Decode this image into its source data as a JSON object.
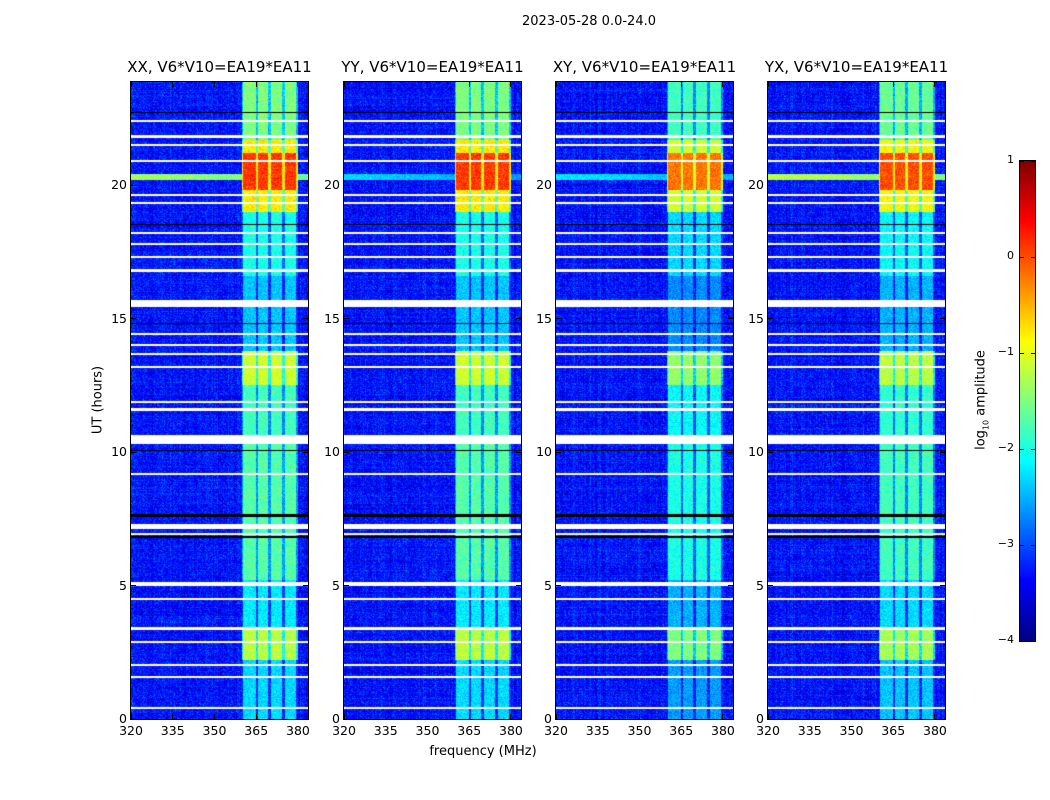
{
  "suptitle": "2023-05-28 0.0-24.0",
  "chart_data": {
    "type": "heatmap",
    "title": "2023-05-28 0.0-24.0",
    "xlabel": "frequency (MHz)",
    "ylabel": "UT (hours)",
    "xlim": [
      320,
      383.6
    ],
    "ylim": [
      0,
      23.86
    ],
    "xticks": [
      "320",
      "335",
      "350",
      "365",
      "380"
    ],
    "xtick_values": [
      320,
      335,
      350,
      365,
      380
    ],
    "yticks": [
      "0",
      "5",
      "10",
      "15",
      "20"
    ],
    "ytick_values": [
      0,
      5,
      10,
      15,
      20
    ],
    "colorbar": {
      "label_main": "log",
      "label_sub": "10",
      "label_rest": " amplitude",
      "colormap": "jet",
      "range": [
        -4,
        1
      ],
      "ticks": [
        "1",
        "0",
        "−1",
        "−2",
        "−3",
        "−4"
      ],
      "tick_values": [
        1,
        0,
        -1,
        -2,
        -3,
        -4
      ]
    },
    "background_level": -3.3,
    "rfi_band_channels_mhz": [
      [
        360.2,
        364.9
      ],
      [
        365.6,
        369.2
      ],
      [
        370.3,
        374.2
      ],
      [
        375.3,
        379.2
      ]
    ],
    "rfi_band_levels": [
      {
        "hours": [
          0,
          2.2
        ],
        "level": -2.3
      },
      {
        "hours": [
          2.2,
          3.4
        ],
        "level": -1.2
      },
      {
        "hours": [
          3.4,
          5.2
        ],
        "level": -2.2
      },
      {
        "hours": [
          5.2,
          10.4
        ],
        "level": -1.7
      },
      {
        "hours": [
          10.4,
          12.5
        ],
        "level": -1.8
      },
      {
        "hours": [
          12.5,
          13.8
        ],
        "level": -1.1
      },
      {
        "hours": [
          13.8,
          16.6
        ],
        "level": -2.4
      },
      {
        "hours": [
          16.6,
          19.0
        ],
        "level": -2.0
      },
      {
        "hours": [
          19.0,
          19.8
        ],
        "level": -0.8
      },
      {
        "hours": [
          19.8,
          21.2
        ],
        "level": 0.1
      },
      {
        "hours": [
          21.2,
          21.7
        ],
        "level": -0.8
      },
      {
        "hours": [
          21.7,
          23.86
        ],
        "level": -1.5
      }
    ],
    "flagged_hours": [
      [
        0.38,
        0.45
      ],
      [
        1.55,
        1.62
      ],
      [
        1.98,
        2.05
      ],
      [
        2.85,
        2.92
      ],
      [
        3.35,
        3.45
      ],
      [
        4.45,
        4.52
      ],
      [
        4.98,
        5.15
      ],
      [
        6.88,
        6.95
      ],
      [
        7.12,
        7.3
      ],
      [
        9.15,
        9.22
      ],
      [
        10.3,
        10.62
      ],
      [
        11.55,
        11.65
      ],
      [
        11.85,
        11.92
      ],
      [
        13.15,
        13.22
      ],
      [
        13.65,
        13.72
      ],
      [
        13.98,
        14.05
      ],
      [
        14.38,
        14.45
      ],
      [
        15.45,
        15.7
      ],
      [
        16.75,
        16.85
      ],
      [
        17.28,
        17.34
      ],
      [
        17.75,
        17.82
      ],
      [
        18.18,
        18.25
      ],
      [
        19.28,
        19.36
      ],
      [
        19.58,
        19.65
      ],
      [
        20.88,
        20.95
      ],
      [
        21.45,
        21.55
      ],
      [
        21.78,
        21.88
      ],
      [
        22.38,
        22.45
      ]
    ],
    "dark_hours": [
      [
        6.78,
        6.84
      ],
      [
        7.58,
        7.66
      ],
      [
        10.02,
        10.08
      ],
      [
        14.8,
        14.85
      ],
      [
        18.5,
        18.55
      ],
      [
        22.7,
        22.75
      ]
    ],
    "panels": [
      {
        "title": "XX, V6*V10=EA19*EA11",
        "band_offset": 0.0,
        "line_hour": 20.3,
        "line_level": -1.3
      },
      {
        "title": "YY, V6*V10=EA19*EA11",
        "band_offset": 0.0,
        "line_hour": 20.3,
        "line_level": -2.3
      },
      {
        "title": "XY, V6*V10=EA19*EA11",
        "band_offset": -0.3,
        "line_hour": 20.3,
        "line_level": -2.2
      },
      {
        "title": "YX, V6*V10=EA19*EA11",
        "band_offset": -0.1,
        "line_hour": 20.3,
        "line_level": -1.2
      }
    ]
  }
}
